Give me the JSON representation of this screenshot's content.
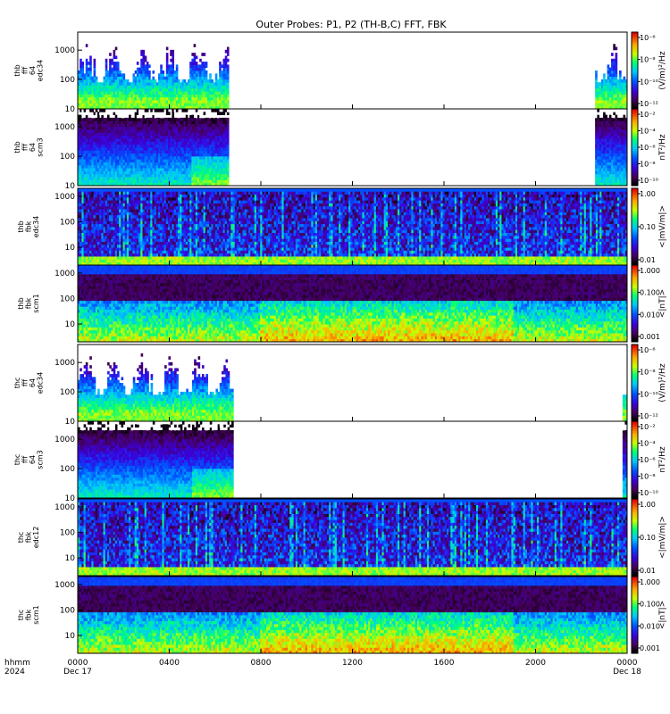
{
  "chart_data": {
    "type": "heatmap",
    "title": "Outer Probes: P1, P2 (TH-B,C) FFT, FBK",
    "x_axis": {
      "label_top": "hhmm",
      "label_bottom": "2024",
      "range_hours": [
        0,
        24
      ],
      "ticks": [
        {
          "h": 0,
          "label": "0000",
          "date": "Dec 17"
        },
        {
          "h": 4,
          "label": "0400",
          "date": ""
        },
        {
          "h": 8,
          "label": "0800",
          "date": ""
        },
        {
          "h": 12,
          "label": "1200",
          "date": ""
        },
        {
          "h": 16,
          "label": "1600",
          "date": ""
        },
        {
          "h": 20,
          "label": "2000",
          "date": ""
        },
        {
          "h": 24,
          "label": "0000",
          "date": "Dec 18"
        }
      ]
    },
    "panels": [
      {
        "ylabel": [
          "thb",
          "fff",
          "64",
          "edc34"
        ],
        "kind": "fff_e",
        "yticks": [
          "1000",
          "100",
          "10"
        ],
        "ylim": [
          10,
          4096
        ],
        "cbar_label": "(V/m)²/Hz",
        "cbar_ticks": [
          "10⁻⁶",
          "10⁻⁸",
          "10⁻¹⁰",
          "10⁻¹²"
        ],
        "cbar_type": "rainbow",
        "data_hours": [
          [
            0,
            6.6
          ],
          [
            22.6,
            24
          ]
        ]
      },
      {
        "ylabel": [
          "thb",
          "fff",
          "64",
          "scm3"
        ],
        "kind": "fff_b",
        "yticks": [
          "1000",
          "100",
          "10"
        ],
        "ylim": [
          10,
          4096
        ],
        "cbar_label": "nT²/Hz",
        "cbar_ticks": [
          "10⁻²",
          "10⁻⁴",
          "10⁻⁶",
          "10⁻⁸",
          "10⁻¹⁰"
        ],
        "cbar_type": "rainbow",
        "data_hours": [
          [
            0,
            6.6
          ],
          [
            22.6,
            24
          ]
        ]
      },
      {
        "ylabel": [
          "thb",
          "fbk",
          "edc34"
        ],
        "kind": "fbk_e",
        "yticks": [
          "1000",
          "100",
          "10"
        ],
        "ylim": [
          2,
          2048
        ],
        "cbar_label": "<|mV/m|>",
        "cbar_ticks": [
          "1.00",
          "0.10",
          "0.01"
        ],
        "cbar_type": "rainbow",
        "data_hours": [
          [
            0,
            24
          ]
        ]
      },
      {
        "ylabel": [
          "thb",
          "fbk",
          "scm1"
        ],
        "kind": "fbk_b",
        "yticks": [
          "1000",
          "100",
          "10"
        ],
        "ylim": [
          2,
          2048
        ],
        "cbar_label": "<|nT|>",
        "cbar_ticks": [
          "1.000",
          "0.100",
          "0.010",
          "0.001"
        ],
        "cbar_type": "rainbow",
        "data_hours": [
          [
            0,
            24
          ]
        ]
      },
      {
        "ylabel": [
          "thc",
          "fff",
          "64",
          "edc34"
        ],
        "kind": "fff_e",
        "yticks": [
          "1000",
          "100",
          "10"
        ],
        "ylim": [
          10,
          4096
        ],
        "cbar_label": "(V/m)²/Hz",
        "cbar_ticks": [
          "10⁻⁶",
          "10⁻⁸",
          "10⁻¹⁰",
          "10⁻¹²"
        ],
        "cbar_type": "rainbow",
        "data_hours": [
          [
            0,
            6.8
          ],
          [
            23.8,
            24
          ]
        ]
      },
      {
        "ylabel": [
          "thc",
          "fff",
          "64",
          "scm3"
        ],
        "kind": "fff_b",
        "yticks": [
          "1000",
          "100",
          "10"
        ],
        "ylim": [
          10,
          4096
        ],
        "cbar_label": "nT²/Hz",
        "cbar_ticks": [
          "10⁻²",
          "10⁻⁴",
          "10⁻⁶",
          "10⁻⁸",
          "10⁻¹⁰"
        ],
        "cbar_type": "rainbow",
        "data_hours": [
          [
            0,
            6.8
          ],
          [
            23.8,
            24
          ]
        ]
      },
      {
        "ylabel": [
          "thc",
          "fbk",
          "edc12"
        ],
        "kind": "fbk_e",
        "yticks": [
          "1000",
          "100",
          "10"
        ],
        "ylim": [
          2,
          2048
        ],
        "cbar_label": "<|mV/m|>",
        "cbar_ticks": [
          "1.00",
          "0.10",
          "0.01"
        ],
        "cbar_type": "rainbow",
        "data_hours": [
          [
            0,
            24
          ]
        ]
      },
      {
        "ylabel": [
          "thc",
          "fbk",
          "scm1"
        ],
        "kind": "fbk_b",
        "yticks": [
          "1000",
          "100",
          "10"
        ],
        "ylim": [
          2,
          2048
        ],
        "cbar_label": "<|nT|>",
        "cbar_ticks": [
          "1.000",
          "0.100",
          "0.010",
          "0.001"
        ],
        "cbar_type": "rainbow",
        "data_hours": [
          [
            0,
            24
          ]
        ]
      }
    ],
    "grid": false,
    "colorbar_placement": "right"
  }
}
